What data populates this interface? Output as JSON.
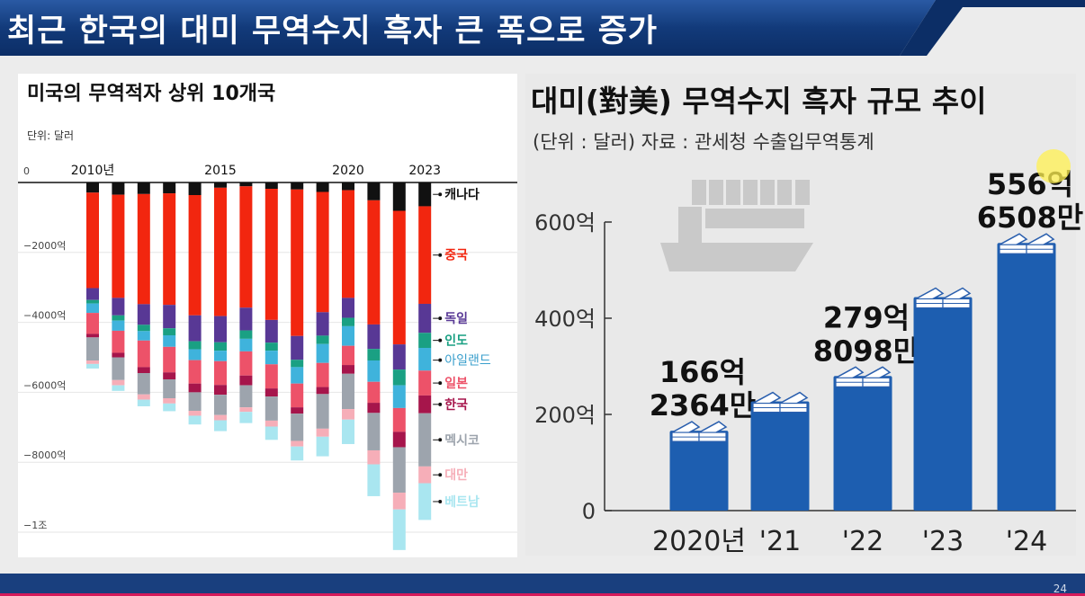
{
  "slide": {
    "title": "최근 한국의 대미 무역수지 흑자 큰 폭으로 증가",
    "page_number": "24",
    "colors": {
      "header_blue": "#123a7a",
      "accent_line": "#d51b5a"
    }
  },
  "chart_data": [
    {
      "type": "bar",
      "stacked": true,
      "title": "미국의 무역적자 상위 10개국",
      "unit_label": "단위: 달러",
      "x": [
        2010,
        2011,
        2012,
        2013,
        2014,
        2015,
        2016,
        2017,
        2018,
        2019,
        2020,
        2021,
        2022,
        2023
      ],
      "x_tick_labels": [
        {
          "year": 2010,
          "label": "2010년"
        },
        {
          "year": 2015,
          "label": "2015"
        },
        {
          "year": 2020,
          "label": "2020"
        },
        {
          "year": 2023,
          "label": "2023"
        }
      ],
      "y_ticks": [
        {
          "value": 0,
          "label": "0"
        },
        {
          "value": -2000,
          "label": "−2000억"
        },
        {
          "value": -4000,
          "label": "−4000억"
        },
        {
          "value": -6000,
          "label": "−6000억"
        },
        {
          "value": -8000,
          "label": "−8000억"
        },
        {
          "value": -10000,
          "label": "−1조"
        }
      ],
      "ylim": [
        -10600,
        0
      ],
      "y_unit": "억 달러",
      "series": [
        {
          "name": "캐나다",
          "color": "#111111",
          "values": [
            -290,
            -350,
            -330,
            -310,
            -360,
            -150,
            -110,
            -180,
            -200,
            -270,
            -220,
            -510,
            -810,
            -680
          ]
        },
        {
          "name": "중국",
          "color": "#f2260f",
          "values": [
            -2730,
            -2950,
            -3150,
            -3190,
            -3440,
            -3670,
            -3470,
            -3750,
            -4190,
            -3440,
            -3080,
            -3550,
            -3820,
            -2790
          ]
        },
        {
          "name": "독일",
          "color": "#583895",
          "values": [
            -340,
            -500,
            -590,
            -670,
            -740,
            -750,
            -650,
            -650,
            -680,
            -670,
            -570,
            -700,
            -720,
            -830
          ]
        },
        {
          "name": "인도",
          "color": "#1aa083",
          "values": [
            -100,
            -150,
            -180,
            -200,
            -230,
            -240,
            -240,
            -230,
            -210,
            -240,
            -240,
            -330,
            -450,
            -430
          ]
        },
        {
          "name": "아일랜드",
          "color": "#3fb3dc",
          "values": [
            -270,
            -290,
            -270,
            -330,
            -310,
            -300,
            -360,
            -390,
            -470,
            -540,
            -560,
            -610,
            -650,
            -650
          ]
        },
        {
          "name": "일본",
          "color": "#ed5269",
          "values": [
            -600,
            -630,
            -760,
            -730,
            -670,
            -680,
            -690,
            -690,
            -680,
            -690,
            -550,
            -600,
            -680,
            -710
          ]
        },
        {
          "name": "한국",
          "color": "#a6154b",
          "values": [
            -100,
            -130,
            -170,
            -200,
            -250,
            -280,
            -280,
            -230,
            -180,
            -200,
            -250,
            -290,
            -440,
            -510
          ]
        },
        {
          "name": "멕시코",
          "color": "#9da4ad",
          "values": [
            -660,
            -650,
            -610,
            -540,
            -530,
            -580,
            -630,
            -690,
            -780,
            -990,
            -1010,
            -1070,
            -1300,
            -1520
          ]
        },
        {
          "name": "대만",
          "color": "#f6aeb8",
          "values": [
            -100,
            -150,
            -150,
            -150,
            -140,
            -150,
            -130,
            -170,
            -160,
            -230,
            -300,
            -400,
            -480,
            -480
          ]
        },
        {
          "name": "베트남",
          "color": "#a9e6f0",
          "values": [
            -130,
            -160,
            -190,
            -220,
            -250,
            -310,
            -320,
            -380,
            -400,
            -560,
            -700,
            -910,
            -1160,
            -1050
          ]
        }
      ]
    },
    {
      "type": "bar",
      "title": "대미(對美) 무역수지 흑자 규모 추이",
      "subtitle": "(단위 : 달러)   자료 : 관세청 수출입무역통계",
      "categories": [
        "2020년",
        "'21",
        "'22",
        "'23",
        "'24"
      ],
      "values": [
        166.2364,
        227,
        279.8098,
        444,
        556.6508
      ],
      "value_labels": [
        [
          "166억",
          "2364만"
        ],
        null,
        [
          "279억",
          "8098만"
        ],
        null,
        [
          "556억",
          "6508만"
        ]
      ],
      "y_ticks": [
        {
          "value": 0,
          "label": "0"
        },
        {
          "value": 200,
          "label": "200억"
        },
        {
          "value": 400,
          "label": "400억"
        },
        {
          "value": 600,
          "label": "600억"
        }
      ],
      "ylim": [
        0,
        600
      ],
      "y_unit": "억 달러",
      "bar_color": "#1d5eb0"
    }
  ]
}
